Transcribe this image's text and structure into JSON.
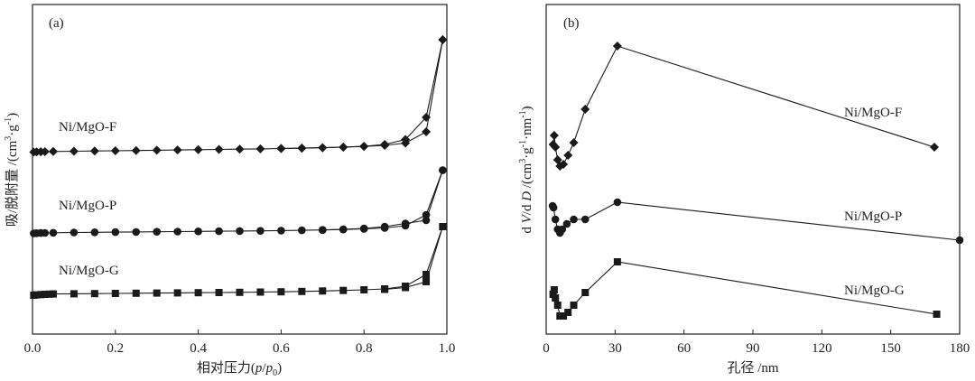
{
  "chart_data": [
    {
      "type": "line",
      "panel_label": "(a)",
      "xlabel": "相对压力(p/p0)",
      "xlabel_parts": [
        "相对压力(",
        "p",
        "/",
        "p",
        "0",
        ")"
      ],
      "ylabel": "吸/脱附量 /(cm³·g⁻¹)",
      "ylabel_parts": [
        "吸/脱附量 /(cm",
        "3",
        "·g",
        "-1",
        ")"
      ],
      "xlim": [
        0,
        1.0
      ],
      "yticks_shown": false,
      "xticks": [
        0.0,
        0.2,
        0.4,
        0.6,
        0.8,
        1.0
      ],
      "xtick_labels": [
        "0.0",
        "0.2",
        "0.4",
        "0.6",
        "0.8",
        "1.0"
      ],
      "series": [
        {
          "name": "Ni/MgO-F",
          "marker": "diamond",
          "adsorption": {
            "x": [
              0.003,
              0.01,
              0.02,
              0.03,
              0.05,
              0.1,
              0.15,
              0.2,
              0.25,
              0.3,
              0.35,
              0.4,
              0.45,
              0.5,
              0.55,
              0.6,
              0.65,
              0.7,
              0.75,
              0.8,
              0.85,
              0.9,
              0.95,
              0.99
            ],
            "y": [
              168.5,
              168.3,
              168.1,
              168.0,
              167.8,
              167.5,
              167.2,
              167.0,
              166.7,
              166.4,
              166.1,
              165.8,
              165.5,
              165.2,
              164.9,
              164.5,
              164.1,
              163.6,
              163.0,
              162.2,
              161.0,
              158.5,
              146.0,
              44.0
            ]
          },
          "desorption": {
            "x": [
              0.99,
              0.95,
              0.9,
              0.85,
              0.8,
              0.75,
              0.7,
              0.65,
              0.6
            ],
            "y": [
              44.0,
              130.0,
              154.5,
              160.0,
              162.0,
              163.0,
              163.6,
              164.1,
              164.5
            ]
          }
        },
        {
          "name": "Ni/MgO-P",
          "marker": "circle",
          "adsorption": {
            "x": [
              0.003,
              0.01,
              0.02,
              0.03,
              0.05,
              0.1,
              0.15,
              0.2,
              0.25,
              0.3,
              0.35,
              0.4,
              0.45,
              0.5,
              0.55,
              0.6,
              0.65,
              0.7,
              0.75,
              0.8,
              0.85,
              0.9,
              0.95,
              0.99
            ],
            "y": [
              258.5,
              258.3,
              258.1,
              258.0,
              257.8,
              257.5,
              257.3,
              257.1,
              256.9,
              256.7,
              256.5,
              256.3,
              256.1,
              255.9,
              255.7,
              255.4,
              255.1,
              254.7,
              254.2,
              253.5,
              252.5,
              250.0,
              238.0,
              188.5
            ]
          },
          "desorption": {
            "x": [
              0.99,
              0.95,
              0.9,
              0.85,
              0.8,
              0.75,
              0.7
            ],
            "y": [
              188.5,
              244.0,
              247.5,
              251.0,
              253.0,
              254.0,
              254.7
            ]
          }
        },
        {
          "name": "Ni/MgO-G",
          "marker": "square",
          "adsorption": {
            "x": [
              0.003,
              0.01,
              0.02,
              0.03,
              0.04,
              0.05,
              0.1,
              0.15,
              0.2,
              0.25,
              0.3,
              0.35,
              0.4,
              0.45,
              0.5,
              0.55,
              0.6,
              0.65,
              0.7,
              0.75,
              0.8,
              0.85,
              0.9,
              0.95,
              0.99
            ],
            "y": [
              327.0,
              326.6,
              326.3,
              326.0,
              325.8,
              325.6,
              325.4,
              325.2,
              325.0,
              324.8,
              324.6,
              324.4,
              324.2,
              324.0,
              323.8,
              323.5,
              323.2,
              322.8,
              322.3,
              321.7,
              321.0,
              320.0,
              317.0,
              304.0,
              251.0
            ]
          },
          "desorption": {
            "x": [
              0.99,
              0.95,
              0.9,
              0.85
            ],
            "y": [
              251.0,
              312.0,
              318.5,
              320.5
            ]
          }
        }
      ]
    },
    {
      "type": "line",
      "panel_label": "(b)",
      "xlabel": "孔径 /nm",
      "ylabel": "d V/d D /(cm³·g⁻¹·nm⁻¹)",
      "ylabel_parts": [
        "d ",
        "V",
        "/d ",
        "D",
        " /(cm",
        "3",
        "·g",
        "-1",
        "·nm",
        "-1",
        ")"
      ],
      "xlim": [
        0,
        180
      ],
      "yticks_shown": false,
      "xticks": [
        0,
        30,
        60,
        90,
        120,
        150,
        180
      ],
      "xtick_labels": [
        "0",
        "30",
        "60",
        "90",
        "120",
        "150",
        "180"
      ],
      "series": [
        {
          "name": "Ni/MgO-F",
          "marker": "diamond",
          "x": [
            3.0,
            3.5,
            4.0,
            5.0,
            6.0,
            7.5,
            9.5,
            12.0,
            17.0,
            31.0,
            169.0
          ],
          "y": [
            160.0,
            150.0,
            163.0,
            177.0,
            184.0,
            182.0,
            172.0,
            158.0,
            121.0,
            51.0,
            163.0
          ]
        },
        {
          "name": "Ni/MgO-P",
          "marker": "circle",
          "x": [
            2.8,
            3.2,
            4.0,
            5.0,
            6.0,
            7.0,
            9.0,
            12.0,
            17.0,
            31.0,
            180.0
          ],
          "y": [
            228.0,
            230.0,
            243.0,
            254.0,
            258.0,
            254.0,
            248.0,
            243.0,
            243.0,
            224.0,
            266.0
          ]
        },
        {
          "name": "Ni/MgO-G",
          "marker": "square",
          "x": [
            3.0,
            3.5,
            4.0,
            5.0,
            6.0,
            7.5,
            9.5,
            12.0,
            17.0,
            31.0,
            170.0
          ],
          "y": [
            326.0,
            321.0,
            330.0,
            338.0,
            350.0,
            350.0,
            346.0,
            338.0,
            324.0,
            290.0,
            348.0
          ]
        }
      ]
    }
  ]
}
